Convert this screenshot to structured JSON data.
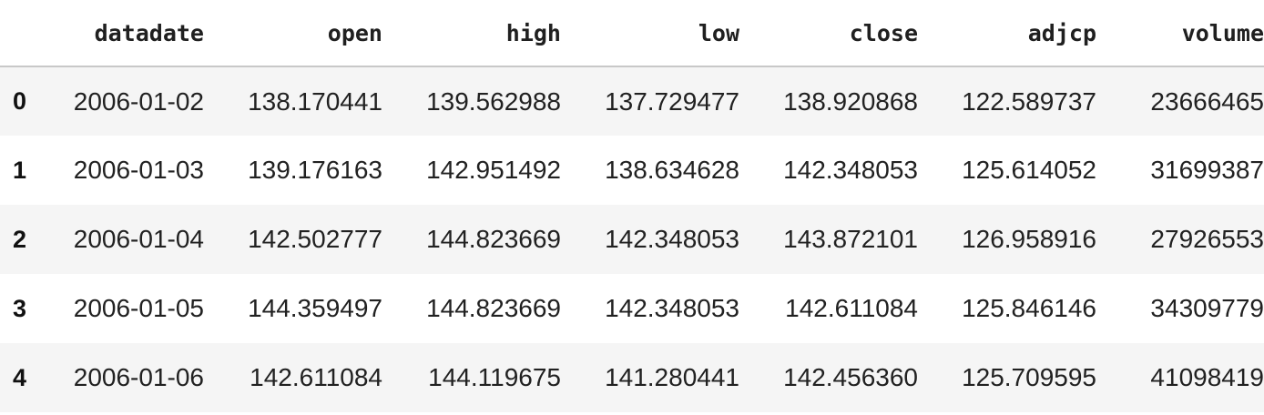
{
  "table": {
    "columns": [
      "datadate",
      "open",
      "high",
      "low",
      "close",
      "adjcp",
      "volume"
    ],
    "rows": [
      {
        "index": "0",
        "datadate": "2006-01-02",
        "open": "138.170441",
        "high": "139.562988",
        "low": "137.729477",
        "close": "138.920868",
        "adjcp": "122.589737",
        "volume": "23666465"
      },
      {
        "index": "1",
        "datadate": "2006-01-03",
        "open": "139.176163",
        "high": "142.951492",
        "low": "138.634628",
        "close": "142.348053",
        "adjcp": "125.614052",
        "volume": "31699387"
      },
      {
        "index": "2",
        "datadate": "2006-01-04",
        "open": "142.502777",
        "high": "144.823669",
        "low": "142.348053",
        "close": "143.872101",
        "adjcp": "126.958916",
        "volume": "27926553"
      },
      {
        "index": "3",
        "datadate": "2006-01-05",
        "open": "144.359497",
        "high": "144.823669",
        "low": "142.348053",
        "close": "142.611084",
        "adjcp": "125.846146",
        "volume": "34309779"
      },
      {
        "index": "4",
        "datadate": "2006-01-06",
        "open": "142.611084",
        "high": "144.119675",
        "low": "141.280441",
        "close": "142.456360",
        "adjcp": "125.709595",
        "volume": "41098419"
      }
    ]
  }
}
